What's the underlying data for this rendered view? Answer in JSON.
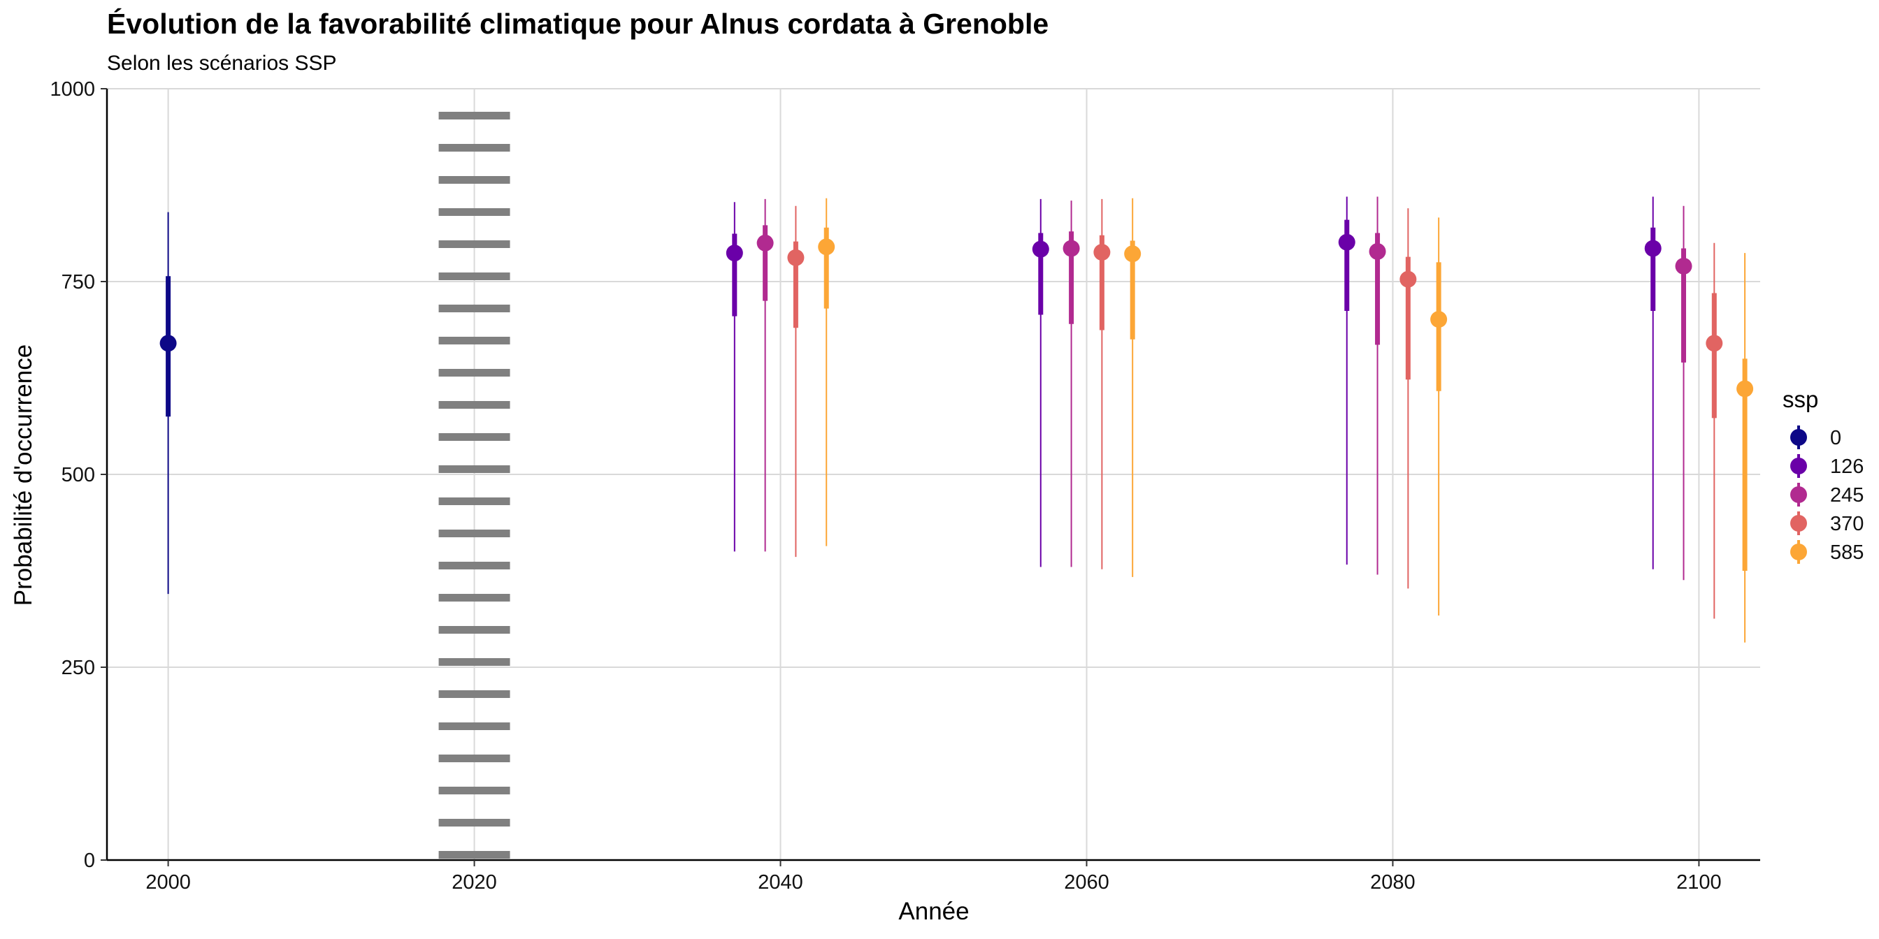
{
  "chart_data": {
    "type": "pointrange",
    "title": "Évolution de la favorabilité climatique pour Alnus cordata à Grenoble",
    "subtitle": "Selon les scénarios SSP",
    "xlabel": "Année",
    "ylabel": "Probabilité d'occurrence",
    "xlim": [
      1996,
      2104
    ],
    "ylim": [
      0,
      1000
    ],
    "x_ticks": [
      2000,
      2020,
      2040,
      2060,
      2080,
      2100
    ],
    "y_ticks": [
      0,
      250,
      500,
      750,
      1000
    ],
    "reference_line_x": 2020,
    "legend_title": "ssp",
    "legend_position": "right",
    "series": [
      {
        "name": "0",
        "color": "#0D0887",
        "points": [
          {
            "year": 2000,
            "median": 670,
            "q_low": 575,
            "q_high": 757,
            "min": 345,
            "max": 840
          }
        ]
      },
      {
        "name": "126",
        "color": "#6A00A8",
        "points": [
          {
            "year": 2037,
            "median": 787,
            "q_low": 705,
            "q_high": 812,
            "min": 400,
            "max": 853
          },
          {
            "year": 2057,
            "median": 792,
            "q_low": 707,
            "q_high": 813,
            "min": 380,
            "max": 857
          },
          {
            "year": 2077,
            "median": 801,
            "q_low": 712,
            "q_high": 830,
            "min": 383,
            "max": 860
          },
          {
            "year": 2097,
            "median": 793,
            "q_low": 712,
            "q_high": 820,
            "min": 377,
            "max": 860
          }
        ]
      },
      {
        "name": "245",
        "color": "#B12A90",
        "points": [
          {
            "year": 2039,
            "median": 800,
            "q_low": 725,
            "q_high": 823,
            "min": 400,
            "max": 857
          },
          {
            "year": 2059,
            "median": 793,
            "q_low": 695,
            "q_high": 815,
            "min": 380,
            "max": 855
          },
          {
            "year": 2079,
            "median": 789,
            "q_low": 668,
            "q_high": 813,
            "min": 370,
            "max": 860
          },
          {
            "year": 2099,
            "median": 770,
            "q_low": 645,
            "q_high": 793,
            "min": 363,
            "max": 848
          }
        ]
      },
      {
        "name": "370",
        "color": "#E16462",
        "points": [
          {
            "year": 2041,
            "median": 781,
            "q_low": 690,
            "q_high": 802,
            "min": 393,
            "max": 848
          },
          {
            "year": 2061,
            "median": 788,
            "q_low": 687,
            "q_high": 810,
            "min": 377,
            "max": 857
          },
          {
            "year": 2081,
            "median": 753,
            "q_low": 623,
            "q_high": 782,
            "min": 352,
            "max": 845
          },
          {
            "year": 2101,
            "median": 670,
            "q_low": 573,
            "q_high": 735,
            "min": 313,
            "max": 800
          }
        ]
      },
      {
        "name": "585",
        "color": "#FCA636",
        "points": [
          {
            "year": 2043,
            "median": 795,
            "q_low": 715,
            "q_high": 820,
            "min": 407,
            "max": 858
          },
          {
            "year": 2063,
            "median": 786,
            "q_low": 675,
            "q_high": 803,
            "min": 367,
            "max": 858
          },
          {
            "year": 2083,
            "median": 701,
            "q_low": 608,
            "q_high": 775,
            "min": 317,
            "max": 833
          },
          {
            "year": 2103,
            "median": 611,
            "q_low": 375,
            "q_high": 650,
            "min": 282,
            "max": 787
          }
        ]
      }
    ]
  }
}
